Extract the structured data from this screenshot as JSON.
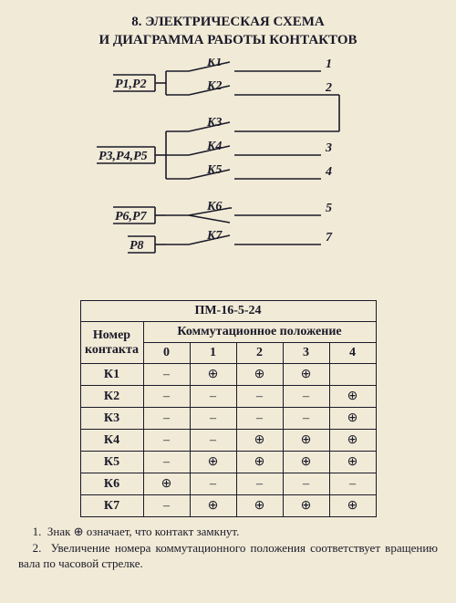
{
  "title_line1": "8. ЭЛЕКТРИЧЕСКАЯ СХЕМА",
  "title_line2": "И ДИАГРАММА РАБОТЫ КОНТАКТОВ",
  "schematic": {
    "stroke_width": 1.6,
    "groups": [
      {
        "inputs": [
          "P1,P2"
        ],
        "contacts": [
          {
            "k": "K1",
            "n": "1"
          },
          {
            "k": "K2",
            "n": "2"
          }
        ],
        "link2to3": true
      },
      {
        "inputs": [
          "P3,P4,P5"
        ],
        "contacts": [
          {
            "k": "K3",
            "n": ""
          },
          {
            "k": "K4",
            "n": "3"
          },
          {
            "k": "K5",
            "n": "4"
          }
        ],
        "k3_into_2": true
      },
      {
        "inputs": [
          "P6,P7"
        ],
        "contacts": [
          {
            "k": "K6",
            "n": "5"
          }
        ],
        "changeover": true
      },
      {
        "inputs": [
          "P8"
        ],
        "contacts": [
          {
            "k": "K7",
            "n": "7"
          }
        ]
      }
    ]
  },
  "table": {
    "title": "ПМ-16-5-24",
    "header_row": "Номер контакта",
    "header_cols": "Коммутационное положение",
    "cols": [
      "0",
      "1",
      "2",
      "3",
      "4"
    ],
    "dash": "–",
    "plus": "⊕",
    "rows": [
      {
        "k": "К1",
        "cells": [
          "–",
          "⊕",
          "⊕",
          "⊕",
          ""
        ]
      },
      {
        "k": "К2",
        "cells": [
          "–",
          "–",
          "–",
          "–",
          "⊕"
        ]
      },
      {
        "k": "К3",
        "cells": [
          "–",
          "–",
          "–",
          "–",
          "⊕"
        ]
      },
      {
        "k": "К4",
        "cells": [
          "–",
          "–",
          "⊕",
          "⊕",
          "⊕"
        ]
      },
      {
        "k": "К5",
        "cells": [
          "–",
          "⊕",
          "⊕",
          "⊕",
          "⊕"
        ]
      },
      {
        "k": "К6",
        "cells": [
          "⊕",
          "–",
          "–",
          "–",
          "–"
        ]
      },
      {
        "k": "К7",
        "cells": [
          "–",
          "⊕",
          "⊕",
          "⊕",
          "⊕"
        ]
      }
    ]
  },
  "notes": {
    "n1": "1.  Знак ⊕ означает, что контакт замкнут.",
    "n2": "2.  Увеличение номера коммутационного положения соответствует вращению вала по часовой стрелке."
  }
}
